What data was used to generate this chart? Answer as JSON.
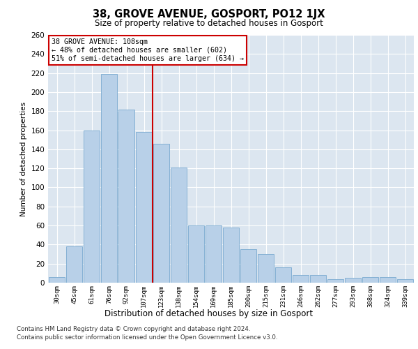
{
  "title": "38, GROVE AVENUE, GOSPORT, PO12 1JX",
  "subtitle": "Size of property relative to detached houses in Gosport",
  "xlabel": "Distribution of detached houses by size in Gosport",
  "ylabel": "Number of detached properties",
  "categories": [
    "30sqm",
    "45sqm",
    "61sqm",
    "76sqm",
    "92sqm",
    "107sqm",
    "123sqm",
    "138sqm",
    "154sqm",
    "169sqm",
    "185sqm",
    "200sqm",
    "215sqm",
    "231sqm",
    "246sqm",
    "262sqm",
    "277sqm",
    "293sqm",
    "308sqm",
    "324sqm",
    "339sqm"
  ],
  "values": [
    6,
    38,
    160,
    219,
    182,
    158,
    146,
    121,
    60,
    60,
    58,
    35,
    30,
    16,
    8,
    8,
    4,
    5,
    6,
    6,
    4
  ],
  "bar_color": "#b8d0e8",
  "bar_edge_color": "#7aaad0",
  "highlight_line_color": "#cc0000",
  "annotation_text": "38 GROVE AVENUE: 108sqm\n← 48% of detached houses are smaller (602)\n51% of semi-detached houses are larger (634) →",
  "annotation_box_color": "#ffffff",
  "annotation_box_edge_color": "#cc0000",
  "ylim": [
    0,
    260
  ],
  "yticks": [
    0,
    20,
    40,
    60,
    80,
    100,
    120,
    140,
    160,
    180,
    200,
    220,
    240,
    260
  ],
  "background_color": "#dce6f0",
  "grid_color": "#ffffff",
  "footer_line1": "Contains HM Land Registry data © Crown copyright and database right 2024.",
  "footer_line2": "Contains public sector information licensed under the Open Government Licence v3.0."
}
